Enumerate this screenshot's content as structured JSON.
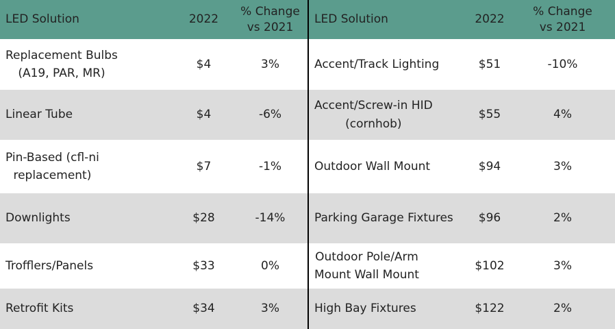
{
  "table": {
    "header": [
      "LED Solution",
      "2022",
      "% Change\nvs 2021",
      "LED Solution",
      "2022",
      "% Change\nvs 2021"
    ],
    "rows": [
      [
        "Replacement Bulbs\n(A19, PAR, MR)",
        "$4",
        "3%",
        "Accent/Track Lighting",
        "$51",
        "-10%"
      ],
      [
        "Linear Tube",
        "$4",
        "-6%",
        "Accent/Screw-in HID\n(cornhob)",
        "$55",
        "4%"
      ],
      [
        "Pin-Based (cfl-ni\nreplacement)",
        "$7",
        "-1%",
        "Outdoor Wall Mount",
        "$94",
        "3%"
      ],
      [
        "Downlights",
        "$28",
        "-14%",
        "Parking Garage Fixtures",
        "$96",
        "2%"
      ],
      [
        "Trofflers/Panels",
        "$33",
        "0%",
        "Outdoor Pole/Arm\nMount Wall Mount",
        "$102",
        "3%"
      ],
      [
        "Retrofit Kits",
        "$34",
        "3%",
        "High Bay Fixtures",
        "$122",
        "2%"
      ]
    ]
  }
}
